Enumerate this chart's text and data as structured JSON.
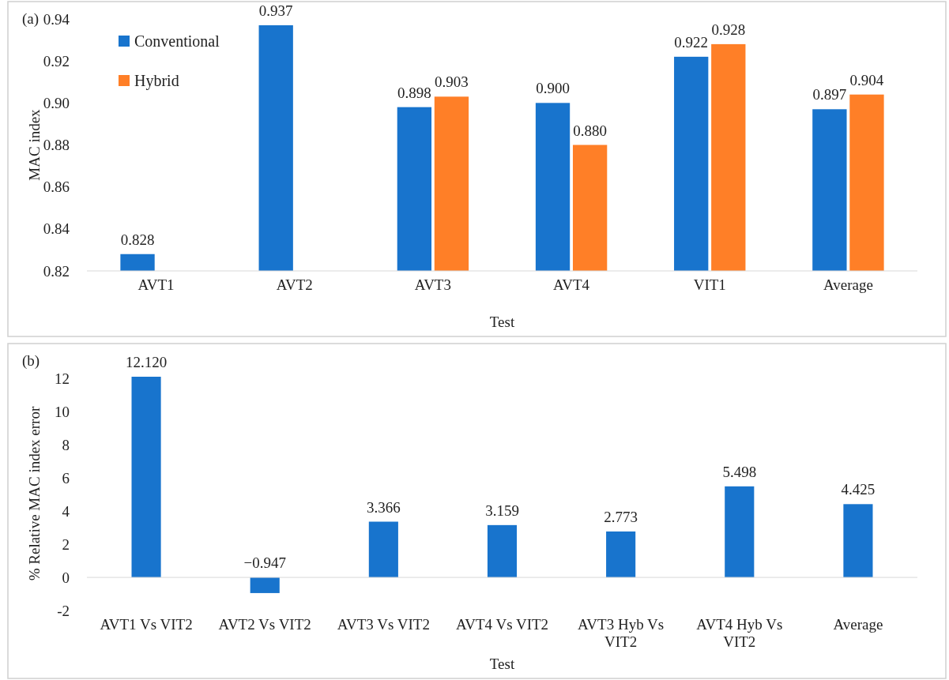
{
  "chart_data": [
    {
      "type": "bar",
      "xlabel": "Test",
      "ylabel": "MAC index",
      "annotations": [
        "(a)"
      ],
      "categories": [
        "AVT1",
        "AVT2",
        "AVT3",
        "AVT4",
        "VIT1",
        "Average"
      ],
      "series": [
        {
          "name": "Conventional",
          "color": "#1874cd",
          "values": [
            0.828,
            0.937,
            0.898,
            0.9,
            0.922,
            0.897
          ],
          "value_labels": [
            "0.828",
            "0.937",
            "0.898",
            "0.900",
            "0.922",
            "0.897"
          ]
        },
        {
          "name": "Hybrid",
          "color": "#ff7f27",
          "values": [
            null,
            null,
            0.903,
            0.88,
            0.928,
            0.904
          ],
          "value_labels": [
            null,
            null,
            "0.903",
            "0.880",
            "0.928",
            "0.904"
          ]
        }
      ],
      "ylim": [
        0.82,
        0.94
      ],
      "yticks": [
        {
          "value": 0.82,
          "label": "0.82"
        },
        {
          "value": 0.84,
          "label": "0.84"
        },
        {
          "value": 0.86,
          "label": "0.86"
        },
        {
          "value": 0.88,
          "label": "0.88"
        },
        {
          "value": 0.9,
          "label": "0.90"
        },
        {
          "value": 0.92,
          "label": "0.92"
        },
        {
          "value": 0.94,
          "label": "0.94"
        }
      ],
      "legend": "top left"
    },
    {
      "type": "bar",
      "xlabel": "Test",
      "ylabel": "% Relative MAC index error",
      "annotations": [
        "(b)"
      ],
      "categories": [
        "AVT1 Vs VIT2",
        "AVT2 Vs VIT2",
        "AVT3 Vs VIT2",
        "AVT4 Vs VIT2",
        "AVT3 Hyb Vs VIT2",
        "AVT4 Hyb Vs VIT2",
        "Average"
      ],
      "series": [
        {
          "color": "#1874cd",
          "values": [
            12.12,
            -0.947,
            3.366,
            3.159,
            2.773,
            5.498,
            4.425
          ],
          "value_labels": [
            "12.120",
            "−0.947",
            "3.366",
            "3.159",
            "2.773",
            "5.498",
            "4.425"
          ]
        }
      ],
      "ylim": [
        -2,
        12.12
      ],
      "yticks": [
        -2,
        0,
        2,
        4,
        6,
        8,
        10,
        12
      ]
    }
  ]
}
